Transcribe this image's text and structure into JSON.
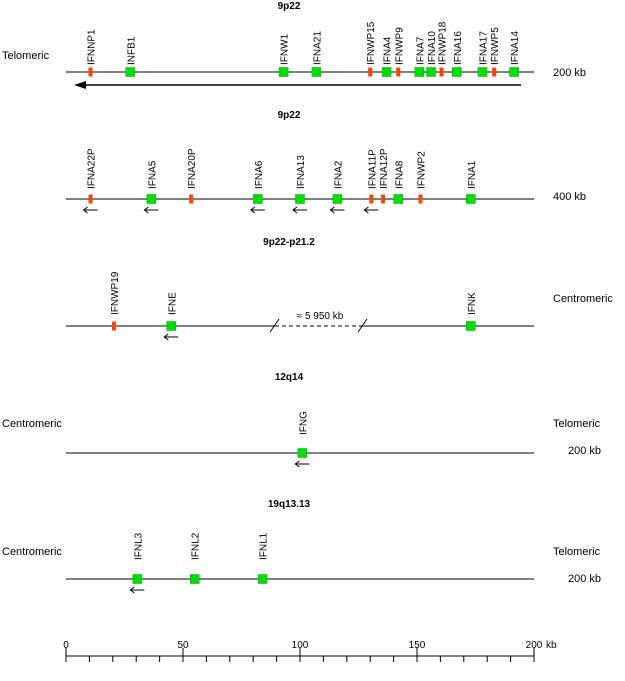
{
  "colors": {
    "gene": "#00dd00",
    "gene_outline": "#00aa00",
    "pseudogene": "#ff4400",
    "line": "#000000"
  },
  "rows": [
    {
      "title": "9p22",
      "left_label": "Telomeric",
      "right_label": "200 kb",
      "long_arrow": "left",
      "genes": [
        {
          "name": "IFNNP1",
          "pos": 10.5,
          "kind": "pseudo"
        },
        {
          "name": "INFB1",
          "pos": 27.5,
          "kind": "gene"
        },
        {
          "name": "IFNW1",
          "pos": 93,
          "kind": "gene"
        },
        {
          "name": "IFNA21",
          "pos": 107,
          "kind": "gene"
        },
        {
          "name": "IFNWP15",
          "pos": 130,
          "kind": "pseudo"
        },
        {
          "name": "IFNA4",
          "pos": 137,
          "kind": "gene"
        },
        {
          "name": "IFNWP9",
          "pos": 142,
          "kind": "pseudo"
        },
        {
          "name": "IFNA7",
          "pos": 151,
          "kind": "gene"
        },
        {
          "name": "IFNA10",
          "pos": 156,
          "kind": "gene"
        },
        {
          "name": "IFNWP18",
          "pos": 160.5,
          "kind": "pseudo"
        },
        {
          "name": "IFNA16",
          "pos": 167,
          "kind": "gene"
        },
        {
          "name": "IFNA17",
          "pos": 178,
          "kind": "gene"
        },
        {
          "name": "IFNWP5",
          "pos": 183,
          "kind": "pseudo"
        },
        {
          "name": "IFNA14",
          "pos": 191.5,
          "kind": "gene"
        }
      ]
    },
    {
      "title": "9p22",
      "left_label": "",
      "right_label": "400 kb",
      "genes": [
        {
          "name": "IFNA22P",
          "pos": 10.5,
          "kind": "pseudo",
          "arrow": "left"
        },
        {
          "name": "IFNA5",
          "pos": 36.5,
          "kind": "gene",
          "arrow": "left"
        },
        {
          "name": "IFNA20P",
          "pos": 53.5,
          "kind": "pseudo"
        },
        {
          "name": "IFNA6",
          "pos": 82,
          "kind": "gene",
          "arrow": "left"
        },
        {
          "name": "IFNA13",
          "pos": 100,
          "kind": "gene",
          "arrow": "left"
        },
        {
          "name": "IFNA2",
          "pos": 116,
          "kind": "gene",
          "arrow": "left"
        },
        {
          "name": "IFNA11P",
          "pos": 130.5,
          "kind": "pseudo",
          "arrow": "left"
        },
        {
          "name": "IFNA12P",
          "pos": 135.5,
          "kind": "pseudo"
        },
        {
          "name": "IFNA8",
          "pos": 142,
          "kind": "gene"
        },
        {
          "name": "IFNWP2",
          "pos": 151.5,
          "kind": "pseudo"
        },
        {
          "name": "IFNA1",
          "pos": 173,
          "kind": "gene"
        }
      ]
    },
    {
      "title": "9p22-p21.2",
      "left_label": "",
      "right_label": "Centromeric",
      "gap_label": "≈ 5 950 kb",
      "genes": [
        {
          "name": "IFNWP19",
          "pos": 20.5,
          "kind": "pseudo"
        },
        {
          "name": "IFNE",
          "pos": 45,
          "kind": "gene",
          "arrow": "left"
        },
        {
          "name": "IFNK",
          "pos": 173,
          "kind": "gene"
        }
      ]
    },
    {
      "title": "12q14",
      "left_label": "Centromeric",
      "right_label": "Telomeric",
      "right_sublabel": "200 kb",
      "genes": [
        {
          "name": "IFNG",
          "pos": 101,
          "kind": "gene",
          "arrow": "left"
        }
      ]
    },
    {
      "title": "19q13.13",
      "left_label": "Centromeric",
      "right_label": "Telomeric",
      "right_sublabel": "200 kb",
      "genes": [
        {
          "name": "IFNL3",
          "pos": 30.5,
          "kind": "gene",
          "arrow": "left"
        },
        {
          "name": "IFNL2",
          "pos": 55,
          "kind": "gene"
        },
        {
          "name": "IFNL1",
          "pos": 84,
          "kind": "gene"
        }
      ]
    }
  ],
  "scale": {
    "min": 0,
    "max": 200,
    "major_ticks": [
      0,
      50,
      100,
      150,
      200
    ],
    "minor_step": 10,
    "unit": "kb"
  }
}
